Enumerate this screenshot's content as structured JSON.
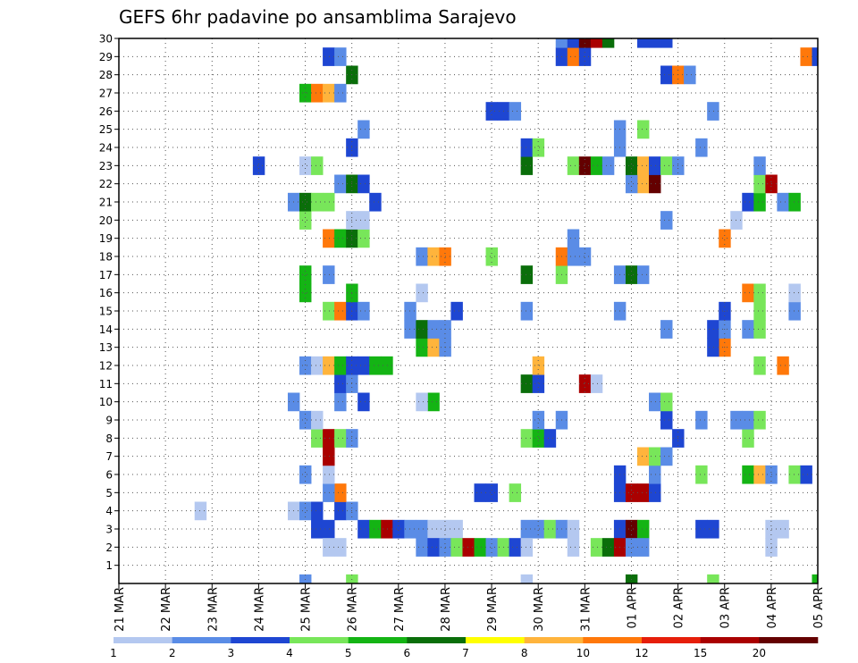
{
  "chart_data": {
    "type": "heatmap",
    "title": "GEFS 6hr padavine po ansamblima Sarajevo",
    "x_tick_labels": [
      "21 MAR",
      "22 MAR",
      "23 MAR",
      "24 MAR",
      "25 MAR",
      "26 MAR",
      "27 MAR",
      "28 MAR",
      "29 MAR",
      "30 MAR",
      "31 MAR",
      "01 APR",
      "02 APR",
      "03 APR",
      "04 APR",
      "05 APR"
    ],
    "y_tick_labels": [
      "1",
      "2",
      "3",
      "4",
      "5",
      "6",
      "7",
      "8",
      "9",
      "10",
      "11",
      "12",
      "13",
      "14",
      "15",
      "16",
      "17",
      "18",
      "19",
      "20",
      "21",
      "22",
      "23",
      "24",
      "25",
      "26",
      "27",
      "28",
      "29",
      "30"
    ],
    "x_range": [
      "21 MAR 00",
      "05 APR 00"
    ],
    "y_range": [
      0,
      30
    ],
    "time_step_hours": 6,
    "grid": true,
    "legend_placement": "bottom",
    "colorbar": {
      "labels": [
        "1",
        "2",
        "3",
        "4",
        "5",
        "6",
        "7",
        "8",
        "10",
        "12",
        "15",
        "20"
      ],
      "colors": [
        "#b4c8f0",
        "#5a8ce6",
        "#1e46d2",
        "#78e65a",
        "#14b414",
        "#0a6e0a",
        "#ffff00",
        "#ffb43c",
        "#ff780a",
        "#e61e0a",
        "#aa0000",
        "#640000"
      ]
    },
    "cells": [
      {
        "x": "25 MAR 06",
        "y": 3,
        "v": 3
      },
      {
        "x": "25 MAR 12",
        "y": 3,
        "v": 3
      },
      {
        "x": "26 MAR 06",
        "y": 3,
        "v": 3
      },
      {
        "x": "26 MAR 12",
        "y": 3,
        "v": 5
      },
      {
        "x": "26 MAR 18",
        "y": 3,
        "v": 15
      },
      {
        "x": "27 MAR 00",
        "y": 3,
        "v": 3
      },
      {
        "x": "27 MAR 06",
        "y": 3,
        "v": 2
      },
      {
        "x": "27 MAR 12",
        "y": 3,
        "v": 2
      },
      {
        "x": "27 MAR 18",
        "y": 3,
        "v": 1
      },
      {
        "x": "28 MAR 00",
        "y": 3,
        "v": 1
      },
      {
        "x": "28 MAR 06",
        "y": 3,
        "v": 1
      },
      {
        "x": "29 MAR 18",
        "y": 3,
        "v": 2
      },
      {
        "x": "30 MAR 00",
        "y": 3,
        "v": 2
      },
      {
        "x": "30 MAR 06",
        "y": 3,
        "v": 4
      },
      {
        "x": "30 MAR 12",
        "y": 3,
        "v": 2
      },
      {
        "x": "30 MAR 18",
        "y": 3,
        "v": 1
      },
      {
        "x": "31 MAR 18",
        "y": 3,
        "v": 3
      },
      {
        "x": "01 APR 00",
        "y": 3,
        "v": 20
      },
      {
        "x": "01 APR 06",
        "y": 3,
        "v": 5
      },
      {
        "x": "02 APR 12",
        "y": 3,
        "v": 3
      },
      {
        "x": "02 APR 18",
        "y": 3,
        "v": 3
      },
      {
        "x": "04 APR 00",
        "y": 3,
        "v": 1
      },
      {
        "x": "04 APR 06",
        "y": 3,
        "v": 1
      },
      {
        "x": "25 MAR 12",
        "y": 2,
        "v": 1
      },
      {
        "x": "25 MAR 18",
        "y": 2,
        "v": 1
      },
      {
        "x": "27 MAR 12",
        "y": 2,
        "v": 2
      },
      {
        "x": "27 MAR 18",
        "y": 2,
        "v": 3
      },
      {
        "x": "28 MAR 00",
        "y": 2,
        "v": 2
      },
      {
        "x": "28 MAR 06",
        "y": 2,
        "v": 4
      },
      {
        "x": "28 MAR 12",
        "y": 2,
        "v": 15
      },
      {
        "x": "28 MAR 18",
        "y": 2,
        "v": 5
      },
      {
        "x": "29 MAR 00",
        "y": 2,
        "v": 2
      },
      {
        "x": "29 MAR 06",
        "y": 2,
        "v": 4
      },
      {
        "x": "29 MAR 12",
        "y": 2,
        "v": 3
      },
      {
        "x": "29 MAR 18",
        "y": 2,
        "v": 1
      },
      {
        "x": "30 MAR 18",
        "y": 2,
        "v": 1
      },
      {
        "x": "31 MAR 06",
        "y": 2,
        "v": 4
      },
      {
        "x": "31 MAR 12",
        "y": 2,
        "v": 6
      },
      {
        "x": "31 MAR 18",
        "y": 2,
        "v": 15
      },
      {
        "x": "01 APR 00",
        "y": 2,
        "v": 2
      },
      {
        "x": "01 APR 06",
        "y": 2,
        "v": 2
      },
      {
        "x": "04 APR 00",
        "y": 2,
        "v": 1
      },
      {
        "x": "24 MAR 18",
        "y": 4,
        "v": 1
      },
      {
        "x": "25 MAR 00",
        "y": 4,
        "v": 2
      },
      {
        "x": "25 MAR 06",
        "y": 4,
        "v": 3
      },
      {
        "x": "25 MAR 18",
        "y": 4,
        "v": 3
      },
      {
        "x": "26 MAR 00",
        "y": 4,
        "v": 2
      },
      {
        "x": "22 MAR 18",
        "y": 4,
        "v": 1
      },
      {
        "x": "25 MAR 18",
        "y": 5,
        "v": 10
      },
      {
        "x": "25 MAR 12",
        "y": 5,
        "v": 2
      },
      {
        "x": "28 MAR 18",
        "y": 5,
        "v": 3
      },
      {
        "x": "29 MAR 00",
        "y": 5,
        "v": 3
      },
      {
        "x": "29 MAR 12",
        "y": 5,
        "v": 4
      },
      {
        "x": "31 MAR 18",
        "y": 5,
        "v": 3
      },
      {
        "x": "01 APR 00",
        "y": 5,
        "v": 15
      },
      {
        "x": "01 APR 06",
        "y": 5,
        "v": 15
      },
      {
        "x": "01 APR 12",
        "y": 5,
        "v": 3
      },
      {
        "x": "25 MAR 00",
        "y": 6,
        "v": 2
      },
      {
        "x": "25 MAR 12",
        "y": 6,
        "v": 1
      },
      {
        "x": "31 MAR 18",
        "y": 6,
        "v": 3
      },
      {
        "x": "01 APR 12",
        "y": 6,
        "v": 2
      },
      {
        "x": "02 APR 12",
        "y": 6,
        "v": 4
      },
      {
        "x": "03 APR 12",
        "y": 6,
        "v": 5
      },
      {
        "x": "03 APR 18",
        "y": 6,
        "v": 8
      },
      {
        "x": "04 APR 00",
        "y": 6,
        "v": 2
      },
      {
        "x": "04 APR 12",
        "y": 6,
        "v": 4
      },
      {
        "x": "04 APR 18",
        "y": 6,
        "v": 3
      },
      {
        "x": "25 MAR 12",
        "y": 7,
        "v": 15
      },
      {
        "x": "01 APR 06",
        "y": 7,
        "v": 8
      },
      {
        "x": "01 APR 12",
        "y": 7,
        "v": 4
      },
      {
        "x": "01 APR 18",
        "y": 7,
        "v": 2
      },
      {
        "x": "25 MAR 06",
        "y": 8,
        "v": 4
      },
      {
        "x": "25 MAR 12",
        "y": 8,
        "v": 15
      },
      {
        "x": "25 MAR 18",
        "y": 8,
        "v": 4
      },
      {
        "x": "26 MAR 00",
        "y": 8,
        "v": 2
      },
      {
        "x": "29 MAR 18",
        "y": 8,
        "v": 4
      },
      {
        "x": "30 MAR 00",
        "y": 8,
        "v": 5
      },
      {
        "x": "30 MAR 06",
        "y": 8,
        "v": 3
      },
      {
        "x": "02 APR 00",
        "y": 8,
        "v": 3
      },
      {
        "x": "03 APR 12",
        "y": 8,
        "v": 4
      },
      {
        "x": "25 MAR 00",
        "y": 9,
        "v": 2
      },
      {
        "x": "25 MAR 06",
        "y": 9,
        "v": 1
      },
      {
        "x": "30 MAR 00",
        "y": 9,
        "v": 2
      },
      {
        "x": "30 MAR 12",
        "y": 9,
        "v": 2
      },
      {
        "x": "01 APR 18",
        "y": 9,
        "v": 3
      },
      {
        "x": "02 APR 12",
        "y": 9,
        "v": 2
      },
      {
        "x": "03 APR 06",
        "y": 9,
        "v": 2
      },
      {
        "x": "03 APR 12",
        "y": 9,
        "v": 2
      },
      {
        "x": "03 APR 18",
        "y": 9,
        "v": 4
      },
      {
        "x": "24 MAR 18",
        "y": 10,
        "v": 2
      },
      {
        "x": "25 MAR 18",
        "y": 10,
        "v": 2
      },
      {
        "x": "26 MAR 06",
        "y": 10,
        "v": 3
      },
      {
        "x": "27 MAR 18",
        "y": 10,
        "v": 5
      },
      {
        "x": "27 MAR 12",
        "y": 10,
        "v": 1
      },
      {
        "x": "01 APR 12",
        "y": 10,
        "v": 2
      },
      {
        "x": "01 APR 18",
        "y": 10,
        "v": 4
      },
      {
        "x": "25 MAR 18",
        "y": 11,
        "v": 3
      },
      {
        "x": "26 MAR 00",
        "y": 11,
        "v": 2
      },
      {
        "x": "29 MAR 18",
        "y": 11,
        "v": 6
      },
      {
        "x": "30 MAR 00",
        "y": 11,
        "v": 3
      },
      {
        "x": "31 MAR 00",
        "y": 11,
        "v": 15
      },
      {
        "x": "31 MAR 06",
        "y": 11,
        "v": 1
      },
      {
        "x": "25 MAR 00",
        "y": 12,
        "v": 2
      },
      {
        "x": "25 MAR 06",
        "y": 12,
        "v": 1
      },
      {
        "x": "25 MAR 12",
        "y": 12,
        "v": 8
      },
      {
        "x": "25 MAR 18",
        "y": 12,
        "v": 5
      },
      {
        "x": "26 MAR 00",
        "y": 12,
        "v": 3
      },
      {
        "x": "26 MAR 06",
        "y": 12,
        "v": 3
      },
      {
        "x": "26 MAR 12",
        "y": 12,
        "v": 5
      },
      {
        "x": "26 MAR 18",
        "y": 12,
        "v": 5
      },
      {
        "x": "30 MAR 00",
        "y": 12,
        "v": 8
      },
      {
        "x": "03 APR 18",
        "y": 12,
        "v": 4
      },
      {
        "x": "04 APR 06",
        "y": 12,
        "v": 10
      },
      {
        "x": "27 MAR 12",
        "y": 13,
        "v": 5
      },
      {
        "x": "27 MAR 18",
        "y": 13,
        "v": 8
      },
      {
        "x": "28 MAR 00",
        "y": 13,
        "v": 2
      },
      {
        "x": "03 APR 00",
        "y": 13,
        "v": 10
      },
      {
        "x": "02 APR 18",
        "y": 13,
        "v": 3
      },
      {
        "x": "27 MAR 06",
        "y": 14,
        "v": 2
      },
      {
        "x": "27 MAR 12",
        "y": 14,
        "v": 6
      },
      {
        "x": "27 MAR 18",
        "y": 14,
        "v": 2
      },
      {
        "x": "28 MAR 00",
        "y": 14,
        "v": 2
      },
      {
        "x": "01 APR 18",
        "y": 14,
        "v": 2
      },
      {
        "x": "02 APR 18",
        "y": 14,
        "v": 3
      },
      {
        "x": "03 APR 00",
        "y": 14,
        "v": 2
      },
      {
        "x": "03 APR 12",
        "y": 14,
        "v": 2
      },
      {
        "x": "03 APR 18",
        "y": 14,
        "v": 4
      },
      {
        "x": "25 MAR 12",
        "y": 15,
        "v": 4
      },
      {
        "x": "25 MAR 18",
        "y": 15,
        "v": 10
      },
      {
        "x": "26 MAR 00",
        "y": 15,
        "v": 3
      },
      {
        "x": "26 MAR 06",
        "y": 15,
        "v": 2
      },
      {
        "x": "27 MAR 06",
        "y": 15,
        "v": 2
      },
      {
        "x": "28 MAR 06",
        "y": 15,
        "v": 3
      },
      {
        "x": "29 MAR 18",
        "y": 15,
        "v": 2
      },
      {
        "x": "31 MAR 18",
        "y": 15,
        "v": 2
      },
      {
        "x": "03 APR 00",
        "y": 15,
        "v": 3
      },
      {
        "x": "03 APR 18",
        "y": 15,
        "v": 4
      },
      {
        "x": "04 APR 12",
        "y": 15,
        "v": 2
      },
      {
        "x": "25 MAR 00",
        "y": 16,
        "v": 5
      },
      {
        "x": "26 MAR 00",
        "y": 16,
        "v": 5
      },
      {
        "x": "27 MAR 12",
        "y": 16,
        "v": 1
      },
      {
        "x": "03 APR 12",
        "y": 16,
        "v": 10
      },
      {
        "x": "03 APR 18",
        "y": 16,
        "v": 4
      },
      {
        "x": "04 APR 12",
        "y": 16,
        "v": 1
      },
      {
        "x": "25 MAR 00",
        "y": 17,
        "v": 5
      },
      {
        "x": "25 MAR 12",
        "y": 17,
        "v": 2
      },
      {
        "x": "29 MAR 18",
        "y": 17,
        "v": 6
      },
      {
        "x": "30 MAR 12",
        "y": 17,
        "v": 4
      },
      {
        "x": "31 MAR 18",
        "y": 17,
        "v": 2
      },
      {
        "x": "01 APR 00",
        "y": 17,
        "v": 6
      },
      {
        "x": "01 APR 06",
        "y": 17,
        "v": 2
      },
      {
        "x": "27 MAR 12",
        "y": 18,
        "v": 2
      },
      {
        "x": "27 MAR 18",
        "y": 18,
        "v": 8
      },
      {
        "x": "28 MAR 00",
        "y": 18,
        "v": 10
      },
      {
        "x": "29 MAR 00",
        "y": 18,
        "v": 4
      },
      {
        "x": "30 MAR 12",
        "y": 18,
        "v": 10
      },
      {
        "x": "30 MAR 18",
        "y": 18,
        "v": 2
      },
      {
        "x": "31 MAR 00",
        "y": 18,
        "v": 2
      },
      {
        "x": "25 MAR 12",
        "y": 19,
        "v": 10
      },
      {
        "x": "25 MAR 18",
        "y": 19,
        "v": 5
      },
      {
        "x": "26 MAR 00",
        "y": 19,
        "v": 6
      },
      {
        "x": "26 MAR 06",
        "y": 19,
        "v": 4
      },
      {
        "x": "30 MAR 18",
        "y": 19,
        "v": 2
      },
      {
        "x": "03 APR 00",
        "y": 19,
        "v": 10
      },
      {
        "x": "25 MAR 00",
        "y": 20,
        "v": 4
      },
      {
        "x": "26 MAR 00",
        "y": 20,
        "v": 1
      },
      {
        "x": "26 MAR 06",
        "y": 20,
        "v": 1
      },
      {
        "x": "01 APR 18",
        "y": 20,
        "v": 2
      },
      {
        "x": "03 APR 06",
        "y": 20,
        "v": 1
      },
      {
        "x": "24 MAR 18",
        "y": 21,
        "v": 2
      },
      {
        "x": "25 MAR 00",
        "y": 21,
        "v": 6
      },
      {
        "x": "25 MAR 06",
        "y": 21,
        "v": 4
      },
      {
        "x": "25 MAR 12",
        "y": 21,
        "v": 4
      },
      {
        "x": "26 MAR 12",
        "y": 21,
        "v": 3
      },
      {
        "x": "03 APR 12",
        "y": 21,
        "v": 3
      },
      {
        "x": "03 APR 18",
        "y": 21,
        "v": 5
      },
      {
        "x": "04 APR 06",
        "y": 21,
        "v": 2
      },
      {
        "x": "04 APR 12",
        "y": 21,
        "v": 5
      },
      {
        "x": "25 MAR 18",
        "y": 22,
        "v": 2
      },
      {
        "x": "26 MAR 00",
        "y": 22,
        "v": 6
      },
      {
        "x": "26 MAR 06",
        "y": 22,
        "v": 3
      },
      {
        "x": "01 APR 06",
        "y": 22,
        "v": 8
      },
      {
        "x": "01 APR 12",
        "y": 22,
        "v": 20
      },
      {
        "x": "01 APR 00",
        "y": 22,
        "v": 2
      },
      {
        "x": "03 APR 18",
        "y": 22,
        "v": 4
      },
      {
        "x": "04 APR 00",
        "y": 22,
        "v": 15
      },
      {
        "x": "24 MAR 00",
        "y": 23,
        "v": 3
      },
      {
        "x": "25 MAR 00",
        "y": 23,
        "v": 1
      },
      {
        "x": "25 MAR 06",
        "y": 23,
        "v": 4
      },
      {
        "x": "29 MAR 18",
        "y": 23,
        "v": 6
      },
      {
        "x": "30 MAR 18",
        "y": 23,
        "v": 4
      },
      {
        "x": "31 MAR 00",
        "y": 23,
        "v": 20
      },
      {
        "x": "31 MAR 06",
        "y": 23,
        "v": 5
      },
      {
        "x": "31 MAR 12",
        "y": 23,
        "v": 2
      },
      {
        "x": "01 APR 00",
        "y": 23,
        "v": 6
      },
      {
        "x": "01 APR 06",
        "y": 23,
        "v": 8
      },
      {
        "x": "01 APR 12",
        "y": 23,
        "v": 3
      },
      {
        "x": "01 APR 18",
        "y": 23,
        "v": 4
      },
      {
        "x": "02 APR 00",
        "y": 23,
        "v": 2
      },
      {
        "x": "03 APR 18",
        "y": 23,
        "v": 2
      },
      {
        "x": "26 MAR 00",
        "y": 24,
        "v": 3
      },
      {
        "x": "29 MAR 18",
        "y": 24,
        "v": 3
      },
      {
        "x": "30 MAR 00",
        "y": 24,
        "v": 4
      },
      {
        "x": "31 MAR 18",
        "y": 24,
        "v": 2
      },
      {
        "x": "02 APR 12",
        "y": 24,
        "v": 2
      },
      {
        "x": "26 MAR 06",
        "y": 25,
        "v": 2
      },
      {
        "x": "01 APR 06",
        "y": 25,
        "v": 4
      },
      {
        "x": "31 MAR 18",
        "y": 25,
        "v": 2
      },
      {
        "x": "29 MAR 00",
        "y": 26,
        "v": 3
      },
      {
        "x": "29 MAR 06",
        "y": 26,
        "v": 3
      },
      {
        "x": "29 MAR 12",
        "y": 26,
        "v": 2
      },
      {
        "x": "02 APR 18",
        "y": 26,
        "v": 2
      },
      {
        "x": "25 MAR 00",
        "y": 27,
        "v": 5
      },
      {
        "x": "25 MAR 06",
        "y": 27,
        "v": 10
      },
      {
        "x": "25 MAR 12",
        "y": 27,
        "v": 8
      },
      {
        "x": "25 MAR 18",
        "y": 27,
        "v": 2
      },
      {
        "x": "26 MAR 00",
        "y": 28,
        "v": 6
      },
      {
        "x": "01 APR 18",
        "y": 28,
        "v": 3
      },
      {
        "x": "02 APR 00",
        "y": 28,
        "v": 10
      },
      {
        "x": "02 APR 06",
        "y": 28,
        "v": 2
      },
      {
        "x": "25 MAR 12",
        "y": 29,
        "v": 3
      },
      {
        "x": "25 MAR 18",
        "y": 29,
        "v": 2
      },
      {
        "x": "30 MAR 12",
        "y": 29,
        "v": 3
      },
      {
        "x": "30 MAR 18",
        "y": 29,
        "v": 10
      },
      {
        "x": "31 MAR 00",
        "y": 29,
        "v": 3
      },
      {
        "x": "04 APR 18",
        "y": 29,
        "v": 10
      },
      {
        "x": "05 APR 00",
        "y": 29,
        "v": 3
      },
      {
        "x": "30 MAR 12",
        "y": 30,
        "v": 2
      },
      {
        "x": "30 MAR 18",
        "y": 30,
        "v": 3
      },
      {
        "x": "31 MAR 00",
        "y": 30,
        "v": 20
      },
      {
        "x": "31 MAR 06",
        "y": 30,
        "v": 15
      },
      {
        "x": "31 MAR 12",
        "y": 30,
        "v": 6
      },
      {
        "x": "01 APR 06",
        "y": 30,
        "v": 3
      },
      {
        "x": "01 APR 12",
        "y": 30,
        "v": 3
      },
      {
        "x": "01 APR 18",
        "y": 30,
        "v": 3
      },
      {
        "x": "25 MAR 00",
        "y": 0,
        "v": 2
      },
      {
        "x": "26 MAR 00",
        "y": 0,
        "v": 4
      },
      {
        "x": "29 MAR 18",
        "y": 0,
        "v": 1
      },
      {
        "x": "01 APR 00",
        "y": 0,
        "v": 6
      },
      {
        "x": "02 APR 18",
        "y": 0,
        "v": 4
      },
      {
        "x": "05 APR 00",
        "y": 0,
        "v": 5
      }
    ]
  }
}
